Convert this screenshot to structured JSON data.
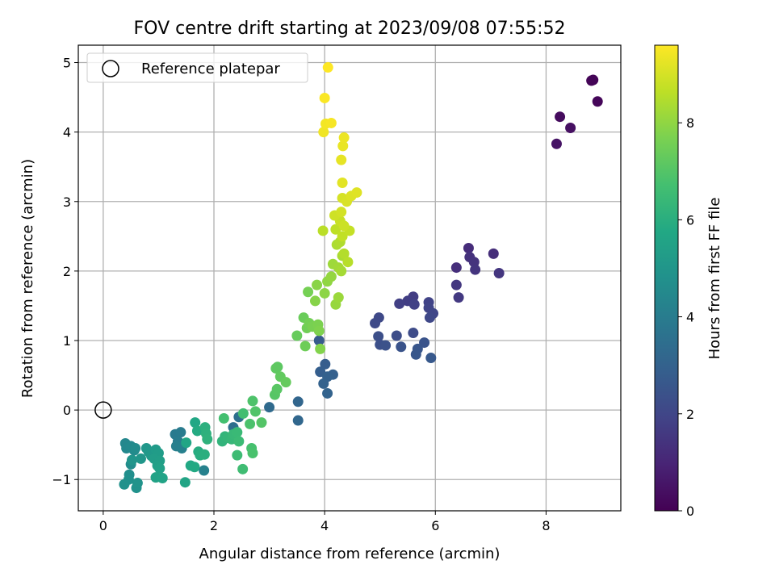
{
  "chart_data": {
    "type": "scatter",
    "title": "FOV centre drift starting at 2023/09/08 07:55:52",
    "xlabel": "Angular distance from reference (arcmin)",
    "ylabel": "Rotation from reference (arcmin)",
    "xlim": [
      -0.45,
      9.35
    ],
    "ylim": [
      -1.45,
      5.25
    ],
    "xticks": [
      0,
      2,
      4,
      6,
      8
    ],
    "yticks": [
      -1,
      0,
      1,
      2,
      3,
      4,
      5
    ],
    "grid": true,
    "legend": {
      "position": "top-left",
      "entries": [
        {
          "label": "Reference platepar",
          "marker": "open-circle"
        }
      ]
    },
    "reference_point": {
      "x": 0,
      "y": 0
    },
    "colorbar": {
      "label": "Hours from first FF file",
      "colormap": "viridis",
      "range": [
        0,
        9.6
      ],
      "ticks": [
        0,
        2,
        4,
        6,
        8
      ]
    },
    "points": [
      {
        "x": 8.85,
        "y": 4.75,
        "t": 0.05
      },
      {
        "x": 8.82,
        "y": 4.74,
        "t": 0.1
      },
      {
        "x": 8.93,
        "y": 4.44,
        "t": 0.15
      },
      {
        "x": 8.25,
        "y": 4.22,
        "t": 0.3
      },
      {
        "x": 8.44,
        "y": 4.06,
        "t": 0.4
      },
      {
        "x": 8.19,
        "y": 3.83,
        "t": 0.5
      },
      {
        "x": 6.6,
        "y": 2.33,
        "t": 1.2
      },
      {
        "x": 7.05,
        "y": 2.25,
        "t": 1.25
      },
      {
        "x": 6.38,
        "y": 2.05,
        "t": 1.3
      },
      {
        "x": 6.62,
        "y": 2.2,
        "t": 1.35
      },
      {
        "x": 6.7,
        "y": 2.13,
        "t": 1.4
      },
      {
        "x": 6.72,
        "y": 2.02,
        "t": 1.45
      },
      {
        "x": 7.15,
        "y": 1.97,
        "t": 1.5
      },
      {
        "x": 6.38,
        "y": 1.8,
        "t": 1.55
      },
      {
        "x": 6.42,
        "y": 1.62,
        "t": 1.6
      },
      {
        "x": 5.6,
        "y": 1.63,
        "t": 1.7
      },
      {
        "x": 5.5,
        "y": 1.57,
        "t": 1.75
      },
      {
        "x": 5.35,
        "y": 1.53,
        "t": 1.8
      },
      {
        "x": 5.62,
        "y": 1.52,
        "t": 1.85
      },
      {
        "x": 5.88,
        "y": 1.55,
        "t": 1.9
      },
      {
        "x": 5.88,
        "y": 1.47,
        "t": 1.95
      },
      {
        "x": 5.96,
        "y": 1.39,
        "t": 2.0
      },
      {
        "x": 5.9,
        "y": 1.33,
        "t": 2.05
      },
      {
        "x": 4.98,
        "y": 1.33,
        "t": 2.1
      },
      {
        "x": 4.91,
        "y": 1.25,
        "t": 2.15
      },
      {
        "x": 5.6,
        "y": 1.11,
        "t": 2.2
      },
      {
        "x": 5.3,
        "y": 1.07,
        "t": 2.25
      },
      {
        "x": 4.97,
        "y": 1.06,
        "t": 2.3
      },
      {
        "x": 5.0,
        "y": 0.94,
        "t": 2.35
      },
      {
        "x": 5.1,
        "y": 0.93,
        "t": 2.4
      },
      {
        "x": 5.38,
        "y": 0.91,
        "t": 2.45
      },
      {
        "x": 5.8,
        "y": 0.97,
        "t": 2.5
      },
      {
        "x": 5.68,
        "y": 0.88,
        "t": 2.55
      },
      {
        "x": 5.65,
        "y": 0.8,
        "t": 2.6
      },
      {
        "x": 5.92,
        "y": 0.75,
        "t": 2.65
      },
      {
        "x": 3.9,
        "y": 1.0,
        "t": 2.75
      },
      {
        "x": 4.01,
        "y": 0.66,
        "t": 2.8
      },
      {
        "x": 3.92,
        "y": 0.55,
        "t": 2.85
      },
      {
        "x": 4.15,
        "y": 0.51,
        "t": 2.9
      },
      {
        "x": 4.05,
        "y": 0.48,
        "t": 2.95
      },
      {
        "x": 3.98,
        "y": 0.38,
        "t": 3.0
      },
      {
        "x": 4.05,
        "y": 0.24,
        "t": 3.05
      },
      {
        "x": 3.52,
        "y": 0.12,
        "t": 3.15
      },
      {
        "x": 3.52,
        "y": -0.15,
        "t": 3.2
      },
      {
        "x": 3.0,
        "y": 0.04,
        "t": 3.3
      },
      {
        "x": 2.35,
        "y": -0.25,
        "t": 3.45
      },
      {
        "x": 2.45,
        "y": -0.1,
        "t": 3.5
      },
      {
        "x": 1.3,
        "y": -0.35,
        "t": 3.9
      },
      {
        "x": 1.4,
        "y": -0.32,
        "t": 3.95
      },
      {
        "x": 1.35,
        "y": -0.45,
        "t": 4.0
      },
      {
        "x": 1.32,
        "y": -0.52,
        "t": 4.1
      },
      {
        "x": 1.42,
        "y": -0.55,
        "t": 4.15
      },
      {
        "x": 1.82,
        "y": -0.87,
        "t": 4.2
      },
      {
        "x": 0.4,
        "y": -0.48,
        "t": 4.4
      },
      {
        "x": 0.42,
        "y": -0.55,
        "t": 4.45
      },
      {
        "x": 0.5,
        "y": -0.52,
        "t": 4.5
      },
      {
        "x": 0.56,
        "y": -0.58,
        "t": 4.55
      },
      {
        "x": 0.58,
        "y": -0.55,
        "t": 4.6
      },
      {
        "x": 0.5,
        "y": -0.78,
        "t": 4.65
      },
      {
        "x": 0.47,
        "y": -0.93,
        "t": 4.7
      },
      {
        "x": 0.46,
        "y": -1.0,
        "t": 4.75
      },
      {
        "x": 0.38,
        "y": -1.07,
        "t": 4.8
      },
      {
        "x": 0.6,
        "y": -1.12,
        "t": 4.85
      },
      {
        "x": 0.62,
        "y": -1.05,
        "t": 4.9
      },
      {
        "x": 0.52,
        "y": -0.72,
        "t": 4.95
      },
      {
        "x": 0.68,
        "y": -0.7,
        "t": 5.0
      },
      {
        "x": 0.78,
        "y": -0.55,
        "t": 5.05
      },
      {
        "x": 0.82,
        "y": -0.6,
        "t": 5.1
      },
      {
        "x": 0.87,
        "y": -0.66,
        "t": 5.15
      },
      {
        "x": 0.95,
        "y": -0.57,
        "t": 5.2
      },
      {
        "x": 1.0,
        "y": -0.62,
        "t": 5.25
      },
      {
        "x": 0.92,
        "y": -0.7,
        "t": 5.3
      },
      {
        "x": 1.02,
        "y": -0.73,
        "t": 5.35
      },
      {
        "x": 0.98,
        "y": -0.8,
        "t": 5.4
      },
      {
        "x": 1.02,
        "y": -0.84,
        "t": 5.45
      },
      {
        "x": 0.95,
        "y": -0.97,
        "t": 5.5
      },
      {
        "x": 1.07,
        "y": -0.98,
        "t": 5.55
      },
      {
        "x": 1.48,
        "y": -1.04,
        "t": 5.6
      },
      {
        "x": 1.5,
        "y": -0.47,
        "t": 5.65
      },
      {
        "x": 1.66,
        "y": -0.18,
        "t": 5.7
      },
      {
        "x": 1.58,
        "y": -0.8,
        "t": 5.75
      },
      {
        "x": 1.65,
        "y": -0.82,
        "t": 5.8
      },
      {
        "x": 1.7,
        "y": -0.3,
        "t": 5.85
      },
      {
        "x": 1.72,
        "y": -0.6,
        "t": 5.9
      },
      {
        "x": 1.75,
        "y": -0.65,
        "t": 5.95
      },
      {
        "x": 1.83,
        "y": -0.64,
        "t": 6.0
      },
      {
        "x": 1.84,
        "y": -0.25,
        "t": 6.05
      },
      {
        "x": 1.86,
        "y": -0.34,
        "t": 6.1
      },
      {
        "x": 1.88,
        "y": -0.42,
        "t": 6.15
      },
      {
        "x": 2.15,
        "y": -0.45,
        "t": 6.2
      },
      {
        "x": 2.2,
        "y": -0.38,
        "t": 6.25
      },
      {
        "x": 2.25,
        "y": -0.4,
        "t": 6.3
      },
      {
        "x": 2.32,
        "y": -0.42,
        "t": 6.35
      },
      {
        "x": 2.35,
        "y": -0.35,
        "t": 6.4
      },
      {
        "x": 2.42,
        "y": -0.32,
        "t": 6.45
      },
      {
        "x": 2.45,
        "y": -0.45,
        "t": 6.5
      },
      {
        "x": 2.42,
        "y": -0.65,
        "t": 6.55
      },
      {
        "x": 2.52,
        "y": -0.85,
        "t": 6.6
      },
      {
        "x": 2.53,
        "y": -0.05,
        "t": 6.65
      },
      {
        "x": 2.18,
        "y": -0.12,
        "t": 6.7
      },
      {
        "x": 2.68,
        "y": -0.55,
        "t": 6.75
      },
      {
        "x": 2.7,
        "y": -0.62,
        "t": 6.8
      },
      {
        "x": 2.65,
        "y": -0.2,
        "t": 6.85
      },
      {
        "x": 2.7,
        "y": 0.13,
        "t": 6.9
      },
      {
        "x": 2.75,
        "y": -0.02,
        "t": 6.95
      },
      {
        "x": 2.86,
        "y": -0.18,
        "t": 7.0
      },
      {
        "x": 3.1,
        "y": 0.22,
        "t": 7.05
      },
      {
        "x": 3.14,
        "y": 0.3,
        "t": 7.1
      },
      {
        "x": 3.15,
        "y": 0.62,
        "t": 7.15
      },
      {
        "x": 3.12,
        "y": 0.6,
        "t": 7.2
      },
      {
        "x": 3.2,
        "y": 0.48,
        "t": 7.25
      },
      {
        "x": 3.3,
        "y": 0.4,
        "t": 7.3
      },
      {
        "x": 3.5,
        "y": 1.07,
        "t": 7.35
      },
      {
        "x": 3.62,
        "y": 1.33,
        "t": 7.4
      },
      {
        "x": 3.65,
        "y": 0.92,
        "t": 7.45
      },
      {
        "x": 3.68,
        "y": 1.18,
        "t": 7.5
      },
      {
        "x": 3.72,
        "y": 1.25,
        "t": 7.55
      },
      {
        "x": 3.7,
        "y": 1.7,
        "t": 7.6
      },
      {
        "x": 3.78,
        "y": 1.2,
        "t": 7.65
      },
      {
        "x": 3.88,
        "y": 1.23,
        "t": 7.7
      },
      {
        "x": 3.9,
        "y": 1.14,
        "t": 7.75
      },
      {
        "x": 3.92,
        "y": 0.88,
        "t": 7.8
      },
      {
        "x": 3.83,
        "y": 1.57,
        "t": 7.85
      },
      {
        "x": 3.86,
        "y": 1.8,
        "t": 7.9
      },
      {
        "x": 4.0,
        "y": 1.68,
        "t": 7.95
      },
      {
        "x": 4.05,
        "y": 1.85,
        "t": 8.0
      },
      {
        "x": 4.12,
        "y": 1.92,
        "t": 8.05
      },
      {
        "x": 4.2,
        "y": 1.52,
        "t": 8.1
      },
      {
        "x": 4.25,
        "y": 1.62,
        "t": 8.15
      },
      {
        "x": 4.15,
        "y": 2.1,
        "t": 8.2
      },
      {
        "x": 4.25,
        "y": 2.05,
        "t": 8.25
      },
      {
        "x": 4.3,
        "y": 2.0,
        "t": 8.3
      },
      {
        "x": 4.32,
        "y": 2.22,
        "t": 8.35
      },
      {
        "x": 4.22,
        "y": 2.38,
        "t": 8.4
      },
      {
        "x": 4.28,
        "y": 2.42,
        "t": 8.45
      },
      {
        "x": 4.35,
        "y": 2.25,
        "t": 8.5
      },
      {
        "x": 4.42,
        "y": 2.13,
        "t": 8.55
      },
      {
        "x": 3.97,
        "y": 2.58,
        "t": 8.6
      },
      {
        "x": 4.2,
        "y": 2.6,
        "t": 8.65
      },
      {
        "x": 4.32,
        "y": 2.5,
        "t": 8.7
      },
      {
        "x": 4.45,
        "y": 2.58,
        "t": 8.75
      },
      {
        "x": 4.28,
        "y": 2.72,
        "t": 8.8
      },
      {
        "x": 4.35,
        "y": 2.65,
        "t": 8.85
      },
      {
        "x": 4.18,
        "y": 2.8,
        "t": 8.9
      },
      {
        "x": 4.3,
        "y": 2.85,
        "t": 8.95
      },
      {
        "x": 4.32,
        "y": 3.05,
        "t": 9.0
      },
      {
        "x": 4.4,
        "y": 3.0,
        "t": 9.05
      },
      {
        "x": 4.48,
        "y": 3.08,
        "t": 9.1
      },
      {
        "x": 4.58,
        "y": 3.13,
        "t": 9.15
      },
      {
        "x": 4.32,
        "y": 3.27,
        "t": 9.2
      },
      {
        "x": 4.3,
        "y": 3.6,
        "t": 9.25
      },
      {
        "x": 4.33,
        "y": 3.8,
        "t": 9.3
      },
      {
        "x": 4.35,
        "y": 3.92,
        "t": 9.35
      },
      {
        "x": 3.98,
        "y": 4.0,
        "t": 9.4
      },
      {
        "x": 4.02,
        "y": 4.12,
        "t": 9.45
      },
      {
        "x": 4.12,
        "y": 4.13,
        "t": 9.5
      },
      {
        "x": 4.0,
        "y": 4.49,
        "t": 9.55
      },
      {
        "x": 4.06,
        "y": 4.93,
        "t": 9.6
      }
    ]
  }
}
